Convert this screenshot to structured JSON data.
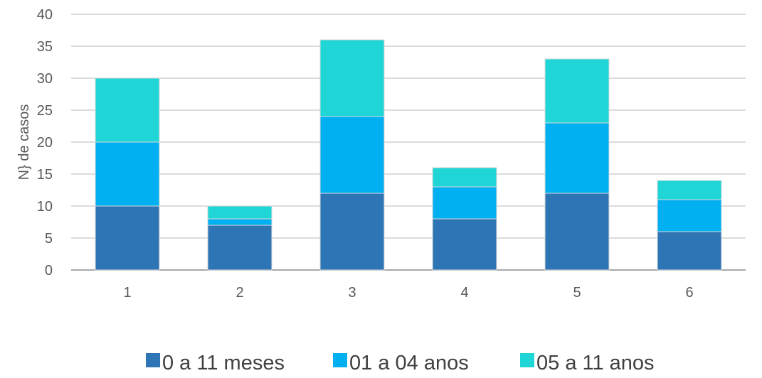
{
  "chart_data": {
    "type": "bar",
    "stacked": true,
    "categories": [
      "1",
      "2",
      "3",
      "4",
      "5",
      "6"
    ],
    "series": [
      {
        "name": "0 a 11 meses",
        "values": [
          10,
          7,
          12,
          8,
          12,
          6
        ],
        "color": "#2E75B6"
      },
      {
        "name": "01 a 04 anos",
        "values": [
          10,
          1,
          12,
          5,
          11,
          5
        ],
        "color": "#00B0F0"
      },
      {
        "name": "05 a 11 anos",
        "values": [
          10,
          2,
          12,
          3,
          10,
          3
        ],
        "color": "#1FD5D5"
      }
    ],
    "ylabel": "N} de casos",
    "ylim": [
      0,
      40
    ],
    "yticks": [
      0,
      5,
      10,
      15,
      20,
      25,
      30,
      35,
      40
    ],
    "grid": true,
    "legend_position": "bottom"
  }
}
